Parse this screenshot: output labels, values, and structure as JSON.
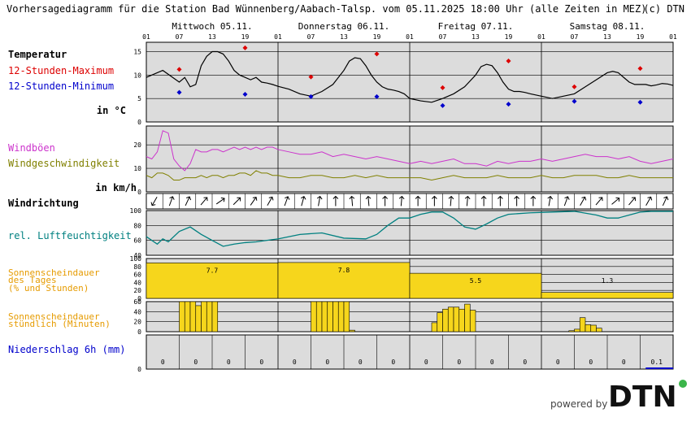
{
  "header": {
    "title": "Vorhersagediagramm für die Station Bad Wünnenberg/Aabach-Talsp. vom 05.11.2025 18:00 Uhr (alle Zeiten in MEZ)",
    "copyright": "(c) DTN"
  },
  "days": [
    "Mittwoch 05.11.",
    "Donnerstag 06.11.",
    "Freitag 07.11.",
    "Samstag 08.11."
  ],
  "hour_ticks": [
    "01",
    "07",
    "13",
    "19",
    "01",
    "07",
    "13",
    "19",
    "01",
    "07",
    "13",
    "19",
    "01",
    "07",
    "13",
    "19",
    "01"
  ],
  "panels": {
    "temperature": {
      "title": "Temperatur",
      "max_label": "12-Stunden-Maximum",
      "min_label": "12-Stunden-Minimum",
      "unit": "in °C",
      "ticks": [
        "0",
        "5",
        "10",
        "15"
      ]
    },
    "wind": {
      "gust_label": "Windböen",
      "speed_label": "Windgeschwindigkeit",
      "unit": "in km/h",
      "ticks": [
        "0",
        "10",
        "20"
      ]
    },
    "winddir": {
      "title": "Windrichtung"
    },
    "humidity": {
      "title": "rel. Luftfeuchtigkeit",
      "ticks": [
        "40",
        "60",
        "80",
        "100"
      ]
    },
    "sun_daily": {
      "title_lines": [
        "Sonnenscheindauer",
        "des Tages",
        "(% und Stunden)"
      ],
      "ticks": [
        "0",
        "20",
        "40",
        "60",
        "80",
        "100"
      ]
    },
    "sun_hourly": {
      "title_lines": [
        "Sonnenscheindauer",
        "stündlich (Minuten)"
      ],
      "ticks": [
        "0",
        "20",
        "40",
        "60"
      ]
    },
    "precip": {
      "title": "Niederschlag 6h (mm)",
      "ticks": [
        "0"
      ]
    }
  },
  "footer": {
    "powered_by": "powered by",
    "brand": "DTN"
  },
  "colors": {
    "panel_bg": "#dcdcdc",
    "temperature_line": "#000000",
    "max_marker": "#dd0000",
    "min_marker": "#0000cc",
    "gusts": "#cc33cc",
    "wind_speed": "#808000",
    "humidity": "#008080",
    "sunshine": "#f6d61c",
    "label_orange": "#e69b00",
    "label_olive": "#808000",
    "label_teal": "#008080",
    "label_blue": "#0000cc",
    "label_magenta": "#cc33cc",
    "label_red": "#dd0000"
  },
  "chart_data": [
    {
      "type": "line",
      "name": "temperature",
      "ylim": [
        0,
        17
      ],
      "x_hours": [
        0,
        3,
        6,
        7,
        8,
        9,
        10,
        11,
        12,
        13,
        14,
        15,
        16,
        17,
        18,
        19,
        20,
        21,
        22,
        23,
        24,
        26,
        28,
        30,
        32,
        34,
        36,
        37,
        38,
        39,
        40,
        41,
        42,
        43,
        44,
        45,
        46,
        47,
        48,
        50,
        52,
        54,
        56,
        58,
        60,
        61,
        62,
        63,
        64,
        65,
        66,
        67,
        68,
        69,
        70,
        72,
        74,
        76,
        78,
        80,
        82,
        84,
        85,
        86,
        87,
        88,
        89,
        90,
        91,
        92,
        93,
        94,
        95,
        96
      ],
      "values": [
        9.5,
        11,
        8.5,
        9.5,
        7.5,
        8.0,
        12.0,
        14.0,
        15.0,
        15.0,
        14.5,
        13.0,
        11.0,
        10.0,
        9.5,
        9.0,
        9.5,
        8.5,
        8.3,
        8.0,
        7.6,
        7.0,
        6.0,
        5.5,
        6.5,
        8.0,
        11.0,
        13.0,
        13.7,
        13.5,
        12.0,
        10.0,
        8.5,
        7.5,
        7.0,
        6.8,
        6.5,
        6.0,
        5.0,
        4.5,
        4.2,
        5.0,
        6.0,
        7.5,
        10.0,
        11.8,
        12.3,
        12.0,
        10.5,
        8.5,
        7.0,
        6.5,
        6.5,
        6.3,
        6.0,
        5.5,
        5.0,
        5.5,
        6.0,
        7.5,
        9.0,
        10.5,
        10.8,
        10.5,
        9.5,
        8.5,
        8.0,
        8.0,
        8.0,
        7.7,
        7.9,
        8.2,
        8.1,
        7.8
      ],
      "max_markers": [
        {
          "x": 6,
          "value": 11.2
        },
        {
          "x": 18,
          "value": 15.8
        },
        {
          "x": 30,
          "value": 9.6
        },
        {
          "x": 42,
          "value": 14.5
        },
        {
          "x": 54,
          "value": 7.3
        },
        {
          "x": 66,
          "value": 13
        },
        {
          "x": 78,
          "value": 7.5
        },
        {
          "x": 90,
          "value": 11.4
        }
      ],
      "min_markers": [
        {
          "x": 6,
          "value": 6.3
        },
        {
          "x": 18,
          "value": 5.9
        },
        {
          "x": 30,
          "value": 5.4
        },
        {
          "x": 42,
          "value": 5.4
        },
        {
          "x": 54,
          "value": 3.5
        },
        {
          "x": 66,
          "value": 3.8
        },
        {
          "x": 78,
          "value": 4.4
        },
        {
          "x": 90,
          "value": 4.2
        }
      ]
    },
    {
      "type": "line",
      "name": "wind",
      "ylim": [
        0,
        28
      ],
      "x_hours": [
        0,
        1,
        2,
        3,
        4,
        5,
        6,
        7,
        8,
        9,
        10,
        11,
        12,
        13,
        14,
        15,
        16,
        17,
        18,
        19,
        20,
        21,
        22,
        23,
        24,
        26,
        28,
        30,
        32,
        34,
        36,
        38,
        40,
        42,
        44,
        46,
        48,
        50,
        52,
        54,
        56,
        58,
        60,
        62,
        64,
        66,
        68,
        70,
        72,
        74,
        76,
        78,
        80,
        82,
        84,
        86,
        88,
        90,
        92,
        94,
        96
      ],
      "gusts": [
        15,
        14,
        17,
        26,
        25,
        14,
        11,
        9,
        12,
        18,
        17,
        17,
        18,
        18,
        17,
        18,
        19,
        18,
        19,
        18,
        19,
        18,
        19,
        19,
        18,
        17,
        16,
        16,
        17,
        15,
        16,
        15,
        14,
        15,
        14,
        13,
        12,
        13,
        12,
        13,
        14,
        12,
        12,
        11,
        13,
        12,
        13,
        13,
        14,
        13,
        14,
        15,
        16,
        15,
        15,
        14,
        15,
        13,
        12,
        13,
        14
      ],
      "speed": [
        7,
        6,
        8,
        8,
        7,
        5,
        5,
        6,
        6,
        6,
        7,
        6,
        7,
        7,
        6,
        7,
        7,
        8,
        8,
        7,
        9,
        8,
        8,
        7,
        7,
        6,
        6,
        7,
        7,
        6,
        6,
        7,
        6,
        7,
        6,
        6,
        6,
        6,
        5,
        6,
        7,
        6,
        6,
        6,
        7,
        6,
        6,
        6,
        7,
        6,
        6,
        7,
        7,
        7,
        6,
        6,
        7,
        6,
        6,
        6,
        6
      ]
    },
    {
      "type": "line",
      "name": "humidity",
      "ylim": [
        40,
        100
      ],
      "x_hours": [
        0,
        2,
        3,
        4,
        6,
        8,
        10,
        12,
        14,
        16,
        18,
        20,
        22,
        24,
        28,
        32,
        36,
        40,
        42,
        44,
        46,
        48,
        50,
        52,
        54,
        56,
        58,
        60,
        62,
        64,
        66,
        70,
        74,
        78,
        82,
        84,
        86,
        88,
        90,
        92,
        94,
        96
      ],
      "values": [
        65,
        55,
        62,
        58,
        72,
        78,
        68,
        60,
        52,
        55,
        57,
        58,
        60,
        62,
        68,
        70,
        63,
        62,
        68,
        80,
        90,
        90,
        95,
        98,
        98,
        90,
        78,
        75,
        82,
        90,
        95,
        97,
        98,
        99,
        94,
        90,
        90,
        94,
        98,
        99,
        99,
        99
      ]
    },
    {
      "type": "bar",
      "name": "sunshine_daily",
      "ylim": [
        0,
        100
      ],
      "categories": [
        "05.11.",
        "06.11.",
        "07.11.",
        "08.11."
      ],
      "values": [
        89,
        90,
        63,
        15
      ],
      "hours": [
        "7.7",
        "7.8",
        "5.5",
        "1.3"
      ]
    },
    {
      "type": "bar",
      "name": "sunshine_hourly",
      "ylim": [
        0,
        60
      ],
      "x_hours": [
        7,
        8,
        9,
        10,
        11,
        12,
        13,
        31,
        32,
        33,
        34,
        35,
        36,
        37,
        38,
        53,
        54,
        55,
        56,
        57,
        58,
        59,
        60,
        78,
        79,
        80,
        81,
        82,
        83
      ],
      "values": [
        60,
        60,
        60,
        52,
        60,
        60,
        60,
        60,
        60,
        60,
        60,
        60,
        60,
        60,
        3,
        18,
        38,
        45,
        49,
        49,
        45,
        55,
        43,
        2,
        5,
        28,
        14,
        13,
        7
      ]
    },
    {
      "type": "bar",
      "name": "precipitation",
      "ylim": [
        0,
        5
      ],
      "categories": [
        "01-07",
        "07-13",
        "13-19",
        "19-01",
        "01-07",
        "07-13",
        "13-19",
        "19-01",
        "01-07",
        "07-13",
        "13-19",
        "19-01",
        "01-07",
        "07-13",
        "13-19",
        "19-01"
      ],
      "values": [
        0,
        0,
        0,
        0,
        0,
        0,
        0,
        0,
        0,
        0,
        0,
        0,
        0,
        0,
        0,
        0.1
      ],
      "labels": [
        "0",
        "0",
        "0",
        "0",
        "0",
        "0",
        "0",
        "0",
        "0",
        "0",
        "0",
        "0",
        "0",
        "0",
        "0",
        "0.1"
      ]
    }
  ]
}
